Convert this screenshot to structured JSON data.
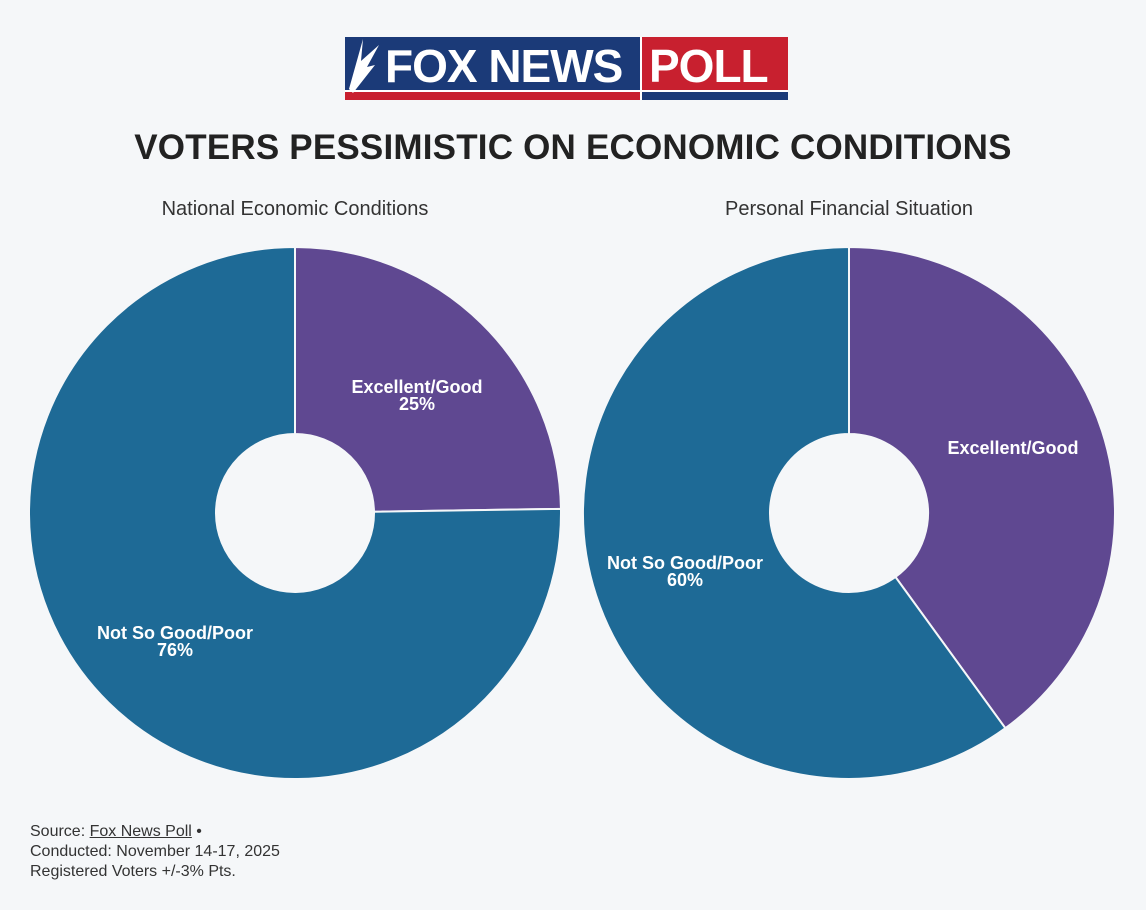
{
  "logo": {
    "brand": "FOX NEWS",
    "product": "POLL"
  },
  "title": "VOTERS PESSIMISTIC ON ECONOMIC CONDITIONS",
  "chart_data": [
    {
      "type": "pie",
      "subtitle": "National Economic Conditions",
      "slices": [
        {
          "label": "Excellent/Good",
          "value": 25,
          "display": "25%",
          "color": "#5f4891"
        },
        {
          "label": "Not So Good/Poor",
          "value": 76,
          "display": "76%",
          "color": "#1e6a96"
        }
      ]
    },
    {
      "type": "pie",
      "subtitle": "Personal Financial Situation",
      "slices": [
        {
          "label": "Excellent/Good",
          "value": 40,
          "display": "",
          "color": "#5f4891"
        },
        {
          "label": "Not So Good/Poor",
          "value": 60,
          "display": "60%",
          "color": "#1e6a96"
        }
      ]
    }
  ],
  "source": {
    "prefix": "Source: ",
    "link_text": "Fox News Poll",
    "bullet": " •",
    "conducted": "Conducted: November 14-17, 2025",
    "margin": "Registered Voters +/-3% Pts."
  }
}
